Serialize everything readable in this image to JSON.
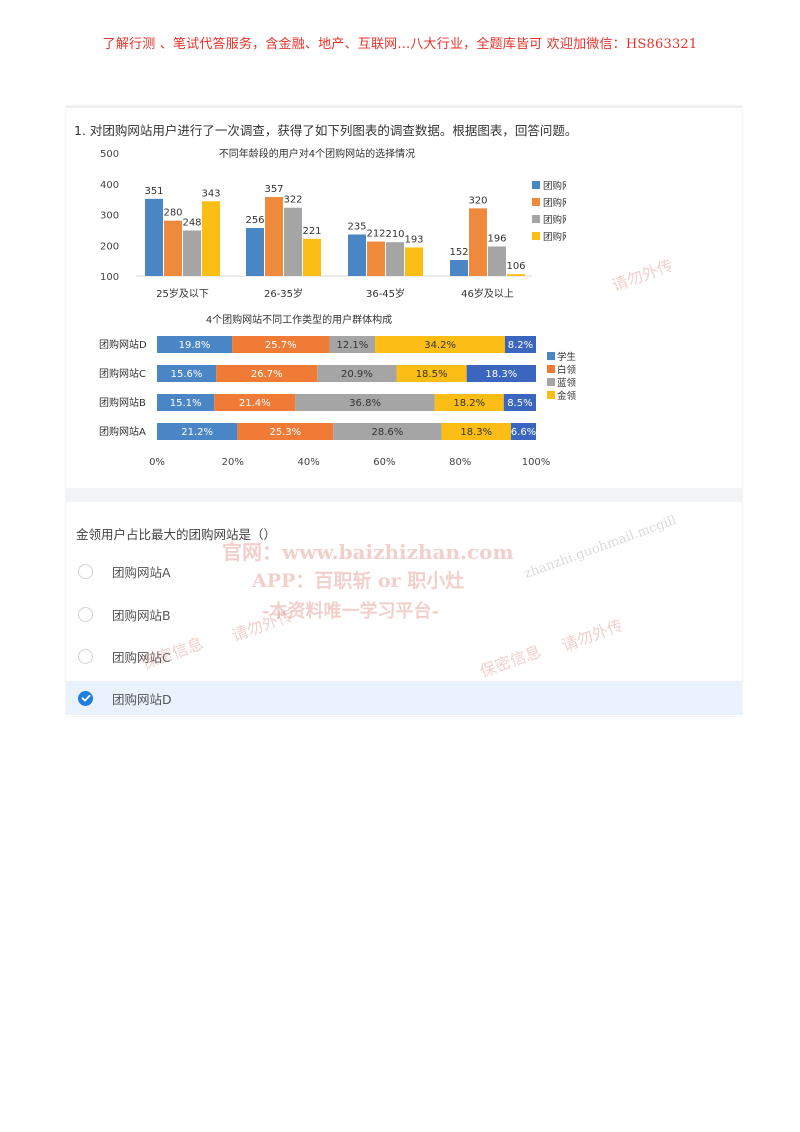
{
  "banner": "了解行测 、笔试代答服务，含金融、地产、互联网...八大行业，全题库皆可 欢迎加微信：HS863321",
  "question": {
    "title": "1.  对团购网站用户进行了一次调查，获得了如下列图表的调查数据。根据图表，回答问题。"
  },
  "chart_data": [
    {
      "type": "bar",
      "title": "不同年龄段的用户对4个团购网站的选择情况",
      "categories": [
        "25岁及以下",
        "26-35岁",
        "36-45岁",
        "46岁及以上"
      ],
      "series": [
        {
          "name": "团购网站A",
          "color": "#4a86c6",
          "values": [
            351,
            256,
            235,
            152
          ]
        },
        {
          "name": "团购网站B",
          "color": "#ef8a3c",
          "values": [
            280,
            357,
            212,
            320
          ]
        },
        {
          "name": "团购网站C",
          "color": "#a5a5a5",
          "values": [
            248,
            322,
            210,
            196
          ]
        },
        {
          "name": "团购网站D",
          "color": "#fcbe14",
          "values": [
            343,
            221,
            193,
            106
          ]
        }
      ],
      "yticks": [
        "500",
        "400",
        "300",
        "200",
        "100"
      ],
      "ylim": [
        100,
        500
      ],
      "legend": "right"
    },
    {
      "type": "bar",
      "orientation": "horizontal-stacked-percent",
      "title": "4个团购网站不同工作类型的用户群体构成",
      "categories": [
        "团购网站D",
        "团购网站C",
        "团购网站B",
        "团购网站A"
      ],
      "series": [
        {
          "name": "学生",
          "color": "#4a86c6",
          "values": [
            19.8,
            15.6,
            15.1,
            21.2
          ],
          "labels": [
            "19.8%",
            "15.6%",
            "15.1%",
            "21.2%"
          ]
        },
        {
          "name": "白领",
          "color": "#ef7b36",
          "values": [
            25.7,
            26.7,
            21.4,
            25.3
          ],
          "labels": [
            "25.7%",
            "26.7%",
            "21.4%",
            "25.3%"
          ]
        },
        {
          "name": "蓝领",
          "color": "#a5a5a5",
          "values": [
            12.1,
            20.9,
            36.8,
            28.6
          ],
          "labels": [
            "12.1%",
            "20.9%",
            "36.8%",
            "28.6%"
          ]
        },
        {
          "name": "金领",
          "color": "#fcbe14",
          "values": [
            34.2,
            18.5,
            18.2,
            18.3
          ],
          "labels": [
            "34.2%",
            "18.5%",
            "18.2%",
            "18.3%"
          ]
        },
        {
          "name": "",
          "color": "#3b66c0",
          "values": [
            8.2,
            18.3,
            8.5,
            6.6
          ],
          "labels": [
            "8.2%",
            "18.3%",
            "8.5%",
            "6.6%"
          ]
        }
      ],
      "xticks": [
        "0%",
        "20%",
        "40%",
        "60%",
        "80%",
        "100%"
      ],
      "xlim": [
        0,
        100
      ],
      "legend": "right"
    }
  ],
  "subquestion": {
    "prompt": "金领用户占比最大的团购网站是（）",
    "options": [
      {
        "label": "团购网站A",
        "selected": false
      },
      {
        "label": "团购网站B",
        "selected": false
      },
      {
        "label": "团购网站C",
        "selected": false
      },
      {
        "label": "团购网站D",
        "selected": true
      }
    ]
  },
  "watermarks": [
    "官网：www.baizhizhan.com",
    "APP：百职斩 or 职小灶",
    "-本资料唯一学习平台-",
    "保密信息",
    "请勿外传",
    "zhanzhi.guohmail.mcgill"
  ]
}
